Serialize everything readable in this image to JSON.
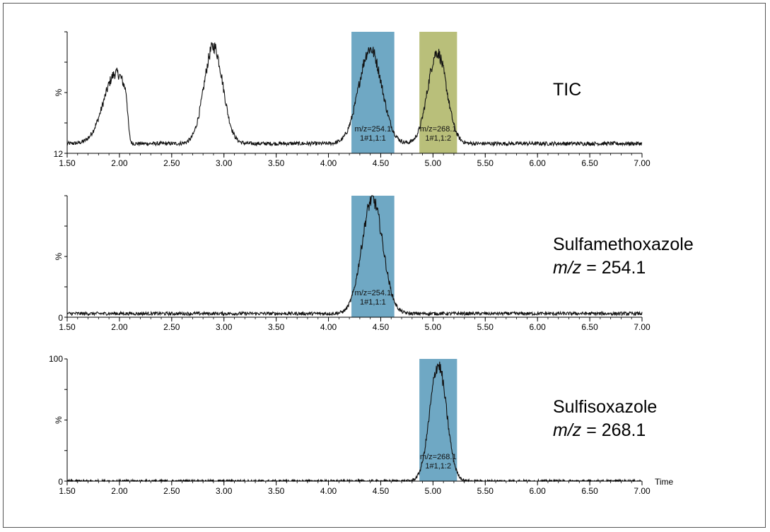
{
  "colors": {
    "highlight_blue": "#6fa8c4",
    "highlight_olive": "#b9bf7a",
    "trace": "#111111"
  },
  "chart_data": [
    {
      "type": "line",
      "panel": "tic",
      "side_label": {
        "line1": "TIC",
        "mz_prefix": "",
        "mz_value": ""
      },
      "ylabel": "%",
      "y_tick_labels": [
        "12"
      ],
      "xlim": [
        1.5,
        7.0
      ],
      "x_tick_labels": [
        "1.50",
        "2.00",
        "2.50",
        "3.00",
        "3.50",
        "4.00",
        "4.50",
        "5.00",
        "5.50",
        "6.00",
        "6.50",
        "7.00"
      ],
      "x_axis_title": "",
      "baseline": 8,
      "peaks": [
        {
          "center": 1.97,
          "width": 0.12,
          "height": 58,
          "cutoff": 2.06
        },
        {
          "center": 2.9,
          "width": 0.09,
          "height": 80
        },
        {
          "center": 4.4,
          "width": 0.11,
          "height": 78
        },
        {
          "center": 5.04,
          "width": 0.09,
          "height": 75
        }
      ],
      "highlights": [
        {
          "x_start": 4.22,
          "x_end": 4.63,
          "color": "highlight_blue",
          "label_line1": "m/z=254.1",
          "label_line2": "1#1,1:1"
        },
        {
          "x_start": 4.87,
          "x_end": 5.23,
          "color": "highlight_olive",
          "label_line1": "m/z=268.1",
          "label_line2": "1#1,1:2"
        }
      ]
    },
    {
      "type": "line",
      "panel": "sulfamethoxazole",
      "side_label": {
        "line1": "Sulfamethoxazole",
        "mz_prefix": "m/z",
        "mz_value": " = 254.1"
      },
      "ylabel": "%",
      "y_tick_labels": [
        "0"
      ],
      "xlim": [
        1.5,
        7.0
      ],
      "x_tick_labels": [
        "1.50",
        "2.00",
        "2.50",
        "3.00",
        "3.50",
        "4.00",
        "4.50",
        "5.00",
        "5.50",
        "6.00",
        "6.50",
        "7.00"
      ],
      "x_axis_title": "",
      "baseline": 3,
      "peaks": [
        {
          "center": 4.42,
          "width": 0.1,
          "height": 94
        }
      ],
      "highlights": [
        {
          "x_start": 4.22,
          "x_end": 4.63,
          "color": "highlight_blue",
          "label_line1": "m/z=254.1",
          "label_line2": "1#1,1:1"
        }
      ]
    },
    {
      "type": "line",
      "panel": "sulfisoxazole",
      "side_label": {
        "line1": "Sulfisoxazole",
        "mz_prefix": "m/z",
        "mz_value": " = 268.1"
      },
      "ylabel": "%",
      "y_tick_labels": [
        "100",
        "0"
      ],
      "xlim": [
        1.5,
        7.0
      ],
      "x_tick_labels": [
        "1.50",
        "2.00",
        "2.50",
        "3.00",
        "3.50",
        "4.00",
        "4.50",
        "5.00",
        "5.50",
        "6.00",
        "6.50",
        "7.00"
      ],
      "x_axis_title": "Time",
      "baseline": 0,
      "peaks": [
        {
          "center": 5.05,
          "width": 0.08,
          "height": 95
        }
      ],
      "highlights": [
        {
          "x_start": 4.87,
          "x_end": 5.23,
          "color": "highlight_blue",
          "label_line1": "m/z=268.1",
          "label_line2": "1#1,1:2"
        }
      ]
    }
  ]
}
